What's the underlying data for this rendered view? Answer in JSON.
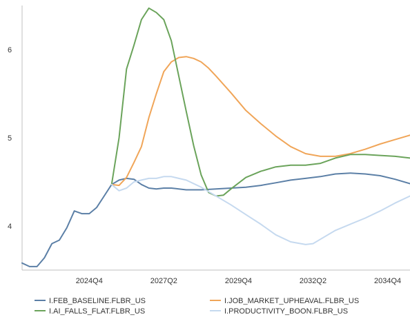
{
  "chart_data": {
    "type": "line",
    "title": "",
    "xlabel": "",
    "ylabel": "",
    "x_ticks": [
      "2024Q4",
      "2027Q2",
      "2029Q4",
      "2032Q2",
      "2034Q4"
    ],
    "x_tick_positions": [
      2024.75,
      2027.25,
      2029.75,
      2032.25,
      2034.75
    ],
    "x_range": [
      2022.5,
      2035.5
    ],
    "y_ticks": [
      4,
      5,
      6
    ],
    "ylim": [
      3.5,
      6.5
    ],
    "grid": false,
    "legend_position": "bottom",
    "series": [
      {
        "name": "I.FEB_BASELINE.FLBR_US",
        "color": "#5b7fa6",
        "points": [
          [
            2022.5,
            3.58
          ],
          [
            2022.75,
            3.54
          ],
          [
            2023.0,
            3.54
          ],
          [
            2023.25,
            3.64
          ],
          [
            2023.5,
            3.8
          ],
          [
            2023.75,
            3.84
          ],
          [
            2024.0,
            3.98
          ],
          [
            2024.25,
            4.17
          ],
          [
            2024.5,
            4.14
          ],
          [
            2024.75,
            4.14
          ],
          [
            2025.0,
            4.21
          ],
          [
            2025.25,
            4.34
          ],
          [
            2025.5,
            4.47
          ],
          [
            2025.75,
            4.52
          ],
          [
            2026.0,
            4.54
          ],
          [
            2026.25,
            4.53
          ],
          [
            2026.5,
            4.47
          ],
          [
            2026.75,
            4.43
          ],
          [
            2027.0,
            4.42
          ],
          [
            2027.25,
            4.43
          ],
          [
            2027.5,
            4.43
          ],
          [
            2027.75,
            4.42
          ],
          [
            2028.0,
            4.41
          ],
          [
            2028.5,
            4.41
          ],
          [
            2029.0,
            4.42
          ],
          [
            2029.5,
            4.43
          ],
          [
            2030.0,
            4.44
          ],
          [
            2030.5,
            4.46
          ],
          [
            2031.0,
            4.49
          ],
          [
            2031.5,
            4.52
          ],
          [
            2032.0,
            4.54
          ],
          [
            2032.5,
            4.56
          ],
          [
            2033.0,
            4.59
          ],
          [
            2033.5,
            4.6
          ],
          [
            2034.0,
            4.59
          ],
          [
            2034.5,
            4.57
          ],
          [
            2035.0,
            4.53
          ],
          [
            2035.5,
            4.48
          ]
        ]
      },
      {
        "name": "I.JOB_MARKET_UPHEAVAL.FLBR_US",
        "color": "#f0a558",
        "points": [
          [
            2025.5,
            4.47
          ],
          [
            2025.75,
            4.46
          ],
          [
            2026.0,
            4.55
          ],
          [
            2026.25,
            4.72
          ],
          [
            2026.5,
            4.9
          ],
          [
            2026.75,
            5.23
          ],
          [
            2027.0,
            5.5
          ],
          [
            2027.25,
            5.75
          ],
          [
            2027.5,
            5.86
          ],
          [
            2027.75,
            5.91
          ],
          [
            2028.0,
            5.92
          ],
          [
            2028.25,
            5.9
          ],
          [
            2028.5,
            5.86
          ],
          [
            2028.75,
            5.79
          ],
          [
            2029.0,
            5.7
          ],
          [
            2029.5,
            5.51
          ],
          [
            2030.0,
            5.31
          ],
          [
            2030.5,
            5.16
          ],
          [
            2031.0,
            5.02
          ],
          [
            2031.5,
            4.9
          ],
          [
            2032.0,
            4.82
          ],
          [
            2032.5,
            4.79
          ],
          [
            2033.0,
            4.79
          ],
          [
            2033.5,
            4.82
          ],
          [
            2034.0,
            4.87
          ],
          [
            2034.5,
            4.93
          ],
          [
            2035.0,
            4.98
          ],
          [
            2035.5,
            5.03
          ]
        ]
      },
      {
        "name": "I.AI_FALLS_FLAT.FLBR_US",
        "color": "#6aa35a",
        "points": [
          [
            2025.5,
            4.47
          ],
          [
            2025.75,
            5.0
          ],
          [
            2026.0,
            5.78
          ],
          [
            2026.25,
            6.05
          ],
          [
            2026.5,
            6.34
          ],
          [
            2026.75,
            6.47
          ],
          [
            2027.0,
            6.42
          ],
          [
            2027.25,
            6.34
          ],
          [
            2027.5,
            6.1
          ],
          [
            2027.75,
            5.7
          ],
          [
            2028.0,
            5.3
          ],
          [
            2028.25,
            4.91
          ],
          [
            2028.5,
            4.58
          ],
          [
            2028.75,
            4.38
          ],
          [
            2029.0,
            4.34
          ],
          [
            2029.25,
            4.35
          ],
          [
            2029.5,
            4.42
          ],
          [
            2030.0,
            4.55
          ],
          [
            2030.5,
            4.62
          ],
          [
            2031.0,
            4.67
          ],
          [
            2031.5,
            4.69
          ],
          [
            2032.0,
            4.69
          ],
          [
            2032.5,
            4.71
          ],
          [
            2033.0,
            4.77
          ],
          [
            2033.5,
            4.81
          ],
          [
            2034.0,
            4.81
          ],
          [
            2034.5,
            4.8
          ],
          [
            2035.0,
            4.79
          ],
          [
            2035.5,
            4.77
          ]
        ]
      },
      {
        "name": "I.PRODUCTIVITY_BOON.FLBR_US",
        "color": "#c5d9ef",
        "points": [
          [
            2025.5,
            4.47
          ],
          [
            2025.75,
            4.4
          ],
          [
            2026.0,
            4.43
          ],
          [
            2026.25,
            4.5
          ],
          [
            2026.5,
            4.52
          ],
          [
            2026.75,
            4.54
          ],
          [
            2027.0,
            4.54
          ],
          [
            2027.25,
            4.56
          ],
          [
            2027.5,
            4.56
          ],
          [
            2027.75,
            4.54
          ],
          [
            2028.0,
            4.52
          ],
          [
            2028.5,
            4.44
          ],
          [
            2029.0,
            4.34
          ],
          [
            2029.5,
            4.24
          ],
          [
            2030.0,
            4.13
          ],
          [
            2030.5,
            4.02
          ],
          [
            2031.0,
            3.9
          ],
          [
            2031.5,
            3.82
          ],
          [
            2032.0,
            3.79
          ],
          [
            2032.25,
            3.8
          ],
          [
            2032.5,
            3.85
          ],
          [
            2033.0,
            3.95
          ],
          [
            2033.5,
            4.02
          ],
          [
            2034.0,
            4.09
          ],
          [
            2034.5,
            4.17
          ],
          [
            2035.0,
            4.26
          ],
          [
            2035.5,
            4.34
          ]
        ]
      }
    ]
  }
}
